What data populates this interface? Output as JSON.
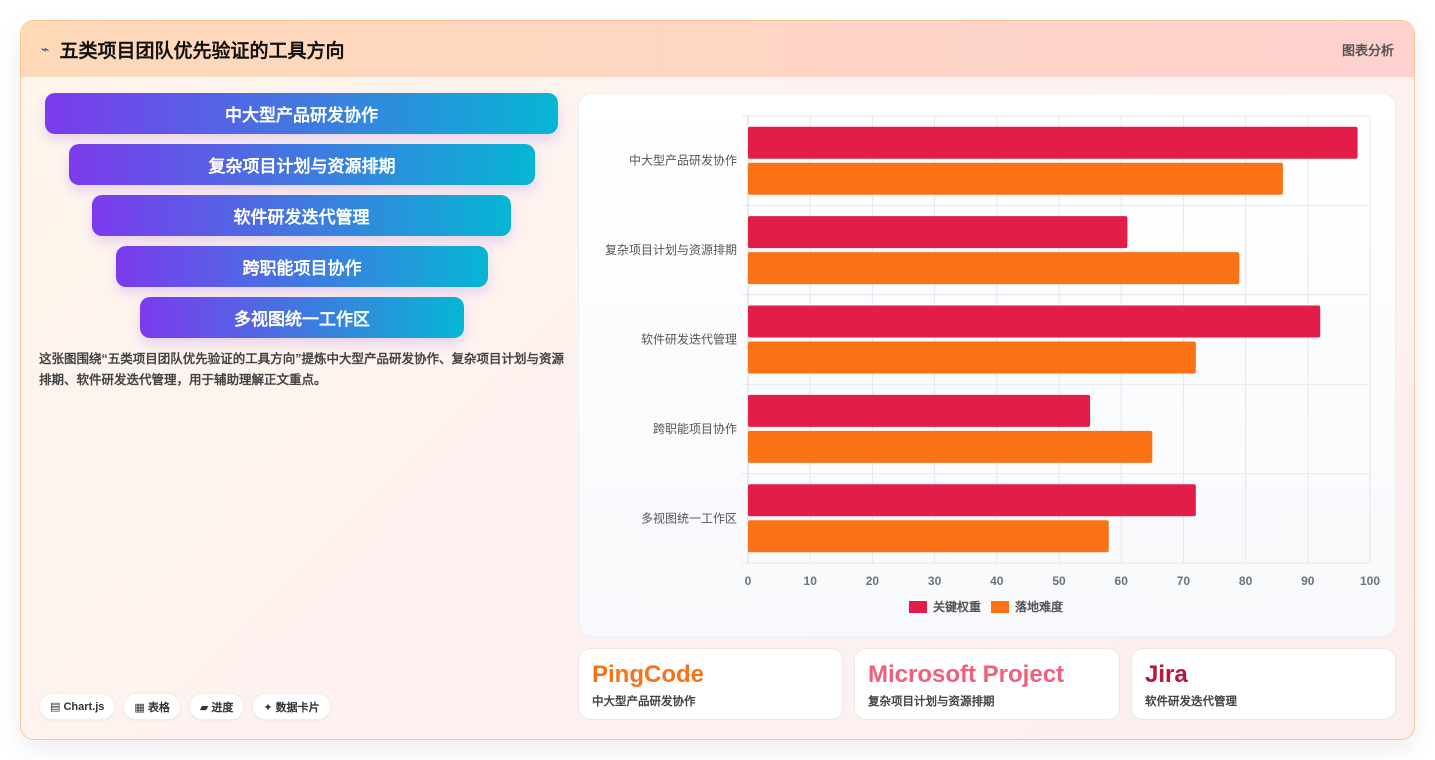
{
  "header": {
    "icon": "chart-line-icon",
    "title": "五类项目团队优先验证的工具方向",
    "tag": "图表分析"
  },
  "funnel": {
    "items": [
      "中大型产品研发协作",
      "复杂项目计划与资源排期",
      "软件研发迭代管理",
      "跨职能项目协作",
      "多视图统一工作区"
    ]
  },
  "description": "这张图围绕“五类项目团队优先验证的工具方向”提炼中大型产品研发协作、复杂项目计划与资源排期、软件研发迭代管理，用于辅助理解正文重点。",
  "badges": [
    "▤ Chart.js",
    "▦ 表格",
    "▰ 进度",
    "✦ 数据卡片"
  ],
  "chart_data": {
    "type": "bar",
    "orientation": "horizontal",
    "categories": [
      "中大型产品研发协作",
      "复杂项目计划与资源排期",
      "软件研发迭代管理",
      "跨职能项目协作",
      "多视图统一工作区"
    ],
    "series": [
      {
        "name": "关键权重",
        "color": "#e11d48",
        "values": [
          98,
          61,
          92,
          55,
          72
        ]
      },
      {
        "name": "落地难度",
        "color": "#f97316",
        "values": [
          86,
          79,
          72,
          65,
          58
        ]
      }
    ],
    "xlim": [
      0,
      100
    ],
    "xticks": [
      0,
      10,
      20,
      30,
      40,
      50,
      60,
      70,
      80,
      90,
      100
    ],
    "grid": true,
    "legend_position": "bottom"
  },
  "tools": [
    {
      "name": "PingCode",
      "sub": "中大型产品研发协作",
      "color": "#f97316"
    },
    {
      "name": "Microsoft Project",
      "sub": "复杂项目计划与资源排期",
      "color": "#f0607a"
    },
    {
      "name": "Jira",
      "sub": "软件研发迭代管理",
      "color": "#be123c"
    }
  ]
}
